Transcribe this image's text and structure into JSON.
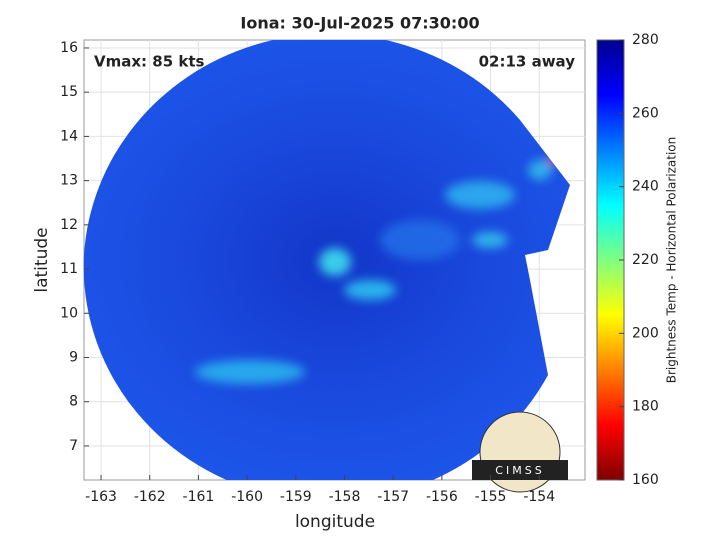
{
  "chart_data": {
    "type": "image",
    "title": "Iona: 30-Jul-2025 07:30:00",
    "annotations": [
      "Vmax: 85 kts",
      "02:13 away"
    ],
    "xlabel": "longitude",
    "ylabel": "latitude",
    "xlim": [
      -163.35,
      -153.06
    ],
    "ylim": [
      6.23,
      16.18
    ],
    "xticks": [
      -163,
      -162,
      -161,
      -160,
      -159,
      -158,
      -157,
      -156,
      -155,
      -154
    ],
    "yticks": [
      7,
      8,
      9,
      10,
      11,
      12,
      13,
      14,
      15,
      16
    ],
    "grid": true,
    "colorbar": {
      "label": "Brightness Temp - Horizontal Polarization",
      "lim": [
        160,
        280
      ],
      "ticks": [
        160,
        180,
        200,
        220,
        240,
        260,
        280
      ]
    },
    "logo_text": "CIMSS"
  }
}
